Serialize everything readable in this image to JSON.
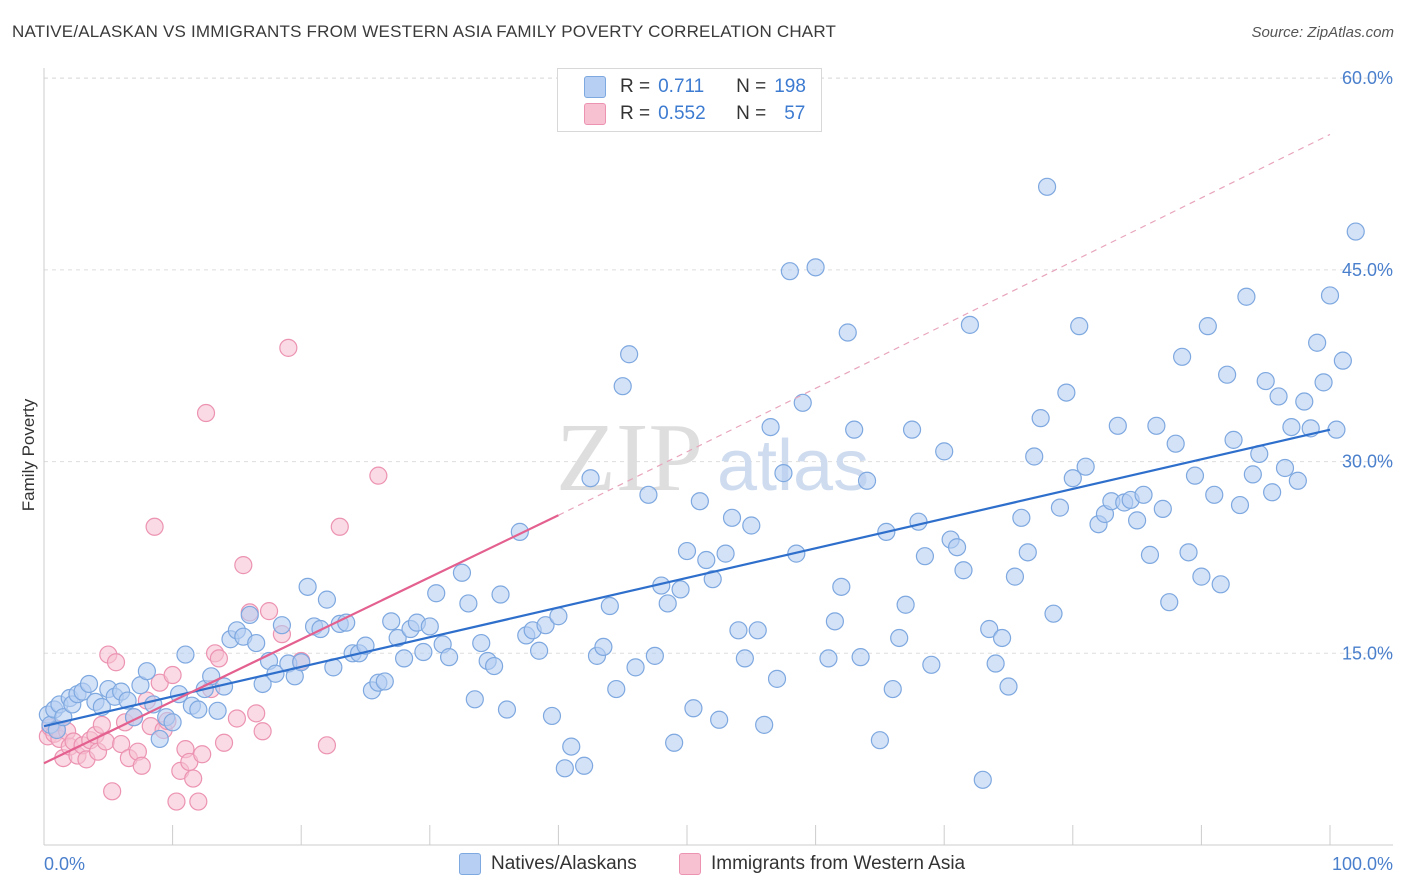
{
  "title": "NATIVE/ALASKAN VS IMMIGRANTS FROM WESTERN ASIA FAMILY POVERTY CORRELATION CHART",
  "source": "Source: ZipAtlas.com",
  "watermark": {
    "zip": "ZIP",
    "atlas": "atlas"
  },
  "legend_top": {
    "r_label": "R =",
    "n_label": "N =",
    "rows": [
      {
        "r": "0.711",
        "n": "198"
      },
      {
        "r": "0.552",
        "n": "57"
      }
    ]
  },
  "colors": {
    "blue_fill": "#b6cff2",
    "blue_stroke": "#7ea8e0",
    "blue_line": "#2f6fcc",
    "pink_fill": "#f7c1d2",
    "pink_stroke": "#ec93b2",
    "pink_line": "#e3608f",
    "grid": "#dddddd",
    "tick_label": "#4a7fcc"
  },
  "chart_data": {
    "type": "scatter",
    "title": "NATIVE/ALASKAN VS IMMIGRANTS FROM WESTERN ASIA FAMILY POVERTY CORRELATION CHART",
    "xlabel": "",
    "ylabel": "Family Poverty",
    "xlim": [
      0,
      100
    ],
    "ylim": [
      0,
      63
    ],
    "x_tick_labels": [
      "0.0%",
      "100.0%"
    ],
    "y_ticks": [
      15,
      30,
      45,
      60
    ],
    "y_tick_labels": [
      "15.0%",
      "30.0%",
      "45.0%",
      "60.0%"
    ],
    "grid": true,
    "legend_position": "bottom",
    "series": [
      {
        "name": "Natives/Alaskans",
        "color": "#b6cff2",
        "trend": {
          "x0": 0,
          "y0": 9.3,
          "x1": 100,
          "y1": 32.5
        },
        "points": [
          [
            0.3,
            10.2
          ],
          [
            0.5,
            9.4
          ],
          [
            0.8,
            10.6
          ],
          [
            1.0,
            9.0
          ],
          [
            1.2,
            11.0
          ],
          [
            1.5,
            10.0
          ],
          [
            2.0,
            11.5
          ],
          [
            2.2,
            11.0
          ],
          [
            2.6,
            11.8
          ],
          [
            3.0,
            12.0
          ],
          [
            3.5,
            12.6
          ],
          [
            4.0,
            11.2
          ],
          [
            4.5,
            10.8
          ],
          [
            5.0,
            12.2
          ],
          [
            5.5,
            11.6
          ],
          [
            6.0,
            12.0
          ],
          [
            6.5,
            11.3
          ],
          [
            7.0,
            10.0
          ],
          [
            7.5,
            12.5
          ],
          [
            8.0,
            13.6
          ],
          [
            8.5,
            11.0
          ],
          [
            9.0,
            8.3
          ],
          [
            9.5,
            10.0
          ],
          [
            10.0,
            9.6
          ],
          [
            10.5,
            11.8
          ],
          [
            11.0,
            14.9
          ],
          [
            11.5,
            10.9
          ],
          [
            12.0,
            10.6
          ],
          [
            12.5,
            12.2
          ],
          [
            13.0,
            13.2
          ],
          [
            13.5,
            10.5
          ],
          [
            14.0,
            12.4
          ],
          [
            14.5,
            16.1
          ],
          [
            15.0,
            16.8
          ],
          [
            15.5,
            16.3
          ],
          [
            16.0,
            18.0
          ],
          [
            16.5,
            15.8
          ],
          [
            17.0,
            12.6
          ],
          [
            17.5,
            14.4
          ],
          [
            18.0,
            13.4
          ],
          [
            18.5,
            17.2
          ],
          [
            19.0,
            14.2
          ],
          [
            19.5,
            13.2
          ],
          [
            20.0,
            14.3
          ],
          [
            20.5,
            20.2
          ],
          [
            21.0,
            17.1
          ],
          [
            21.5,
            16.9
          ],
          [
            22.0,
            19.2
          ],
          [
            22.5,
            13.9
          ],
          [
            23.0,
            17.3
          ],
          [
            23.5,
            17.4
          ],
          [
            24.0,
            15.0
          ],
          [
            24.5,
            15.0
          ],
          [
            25.0,
            15.6
          ],
          [
            25.5,
            12.1
          ],
          [
            26.0,
            12.7
          ],
          [
            26.5,
            12.8
          ],
          [
            27.0,
            17.5
          ],
          [
            27.5,
            16.2
          ],
          [
            28.0,
            14.6
          ],
          [
            28.5,
            16.9
          ],
          [
            29.0,
            17.4
          ],
          [
            29.5,
            15.1
          ],
          [
            30.0,
            17.1
          ],
          [
            30.5,
            19.7
          ],
          [
            31.0,
            15.7
          ],
          [
            31.5,
            14.7
          ],
          [
            32.5,
            21.3
          ],
          [
            33.0,
            18.9
          ],
          [
            33.5,
            11.4
          ],
          [
            34.0,
            15.8
          ],
          [
            34.5,
            14.4
          ],
          [
            35.0,
            14.0
          ],
          [
            35.5,
            19.6
          ],
          [
            36.0,
            10.6
          ],
          [
            37.0,
            24.5
          ],
          [
            37.5,
            16.4
          ],
          [
            38.0,
            16.8
          ],
          [
            38.5,
            15.2
          ],
          [
            39.0,
            17.2
          ],
          [
            39.5,
            10.1
          ],
          [
            40.0,
            17.9
          ],
          [
            40.5,
            6.0
          ],
          [
            41.0,
            7.7
          ],
          [
            42.0,
            6.2
          ],
          [
            42.5,
            28.7
          ],
          [
            43.0,
            14.8
          ],
          [
            43.5,
            15.5
          ],
          [
            44.0,
            18.7
          ],
          [
            44.5,
            12.2
          ],
          [
            45.0,
            35.9
          ],
          [
            45.5,
            38.4
          ],
          [
            46.0,
            13.9
          ],
          [
            47.0,
            27.4
          ],
          [
            47.5,
            14.8
          ],
          [
            48.0,
            20.3
          ],
          [
            48.5,
            18.9
          ],
          [
            49.0,
            8.0
          ],
          [
            49.5,
            20.0
          ],
          [
            50.0,
            23.0
          ],
          [
            50.5,
            10.7
          ],
          [
            51.0,
            26.9
          ],
          [
            51.5,
            22.3
          ],
          [
            52.0,
            20.8
          ],
          [
            52.5,
            9.8
          ],
          [
            53.0,
            22.8
          ],
          [
            53.5,
            25.6
          ],
          [
            54.0,
            16.8
          ],
          [
            54.5,
            14.6
          ],
          [
            55.0,
            25.0
          ],
          [
            55.5,
            16.8
          ],
          [
            56.0,
            9.4
          ],
          [
            56.5,
            32.7
          ],
          [
            57.0,
            13.0
          ],
          [
            57.5,
            29.1
          ],
          [
            58.0,
            44.9
          ],
          [
            58.5,
            22.8
          ],
          [
            59.0,
            34.6
          ],
          [
            60.0,
            45.2
          ],
          [
            61.0,
            14.6
          ],
          [
            61.5,
            17.5
          ],
          [
            62.0,
            20.2
          ],
          [
            62.5,
            40.1
          ],
          [
            63.0,
            32.5
          ],
          [
            63.5,
            14.7
          ],
          [
            64.0,
            28.5
          ],
          [
            65.0,
            8.2
          ],
          [
            65.5,
            24.5
          ],
          [
            66.0,
            12.2
          ],
          [
            66.5,
            16.2
          ],
          [
            67.0,
            18.8
          ],
          [
            67.5,
            32.5
          ],
          [
            68.0,
            25.3
          ],
          [
            68.5,
            22.6
          ],
          [
            69.0,
            14.1
          ],
          [
            70.0,
            30.8
          ],
          [
            70.5,
            23.9
          ],
          [
            71.0,
            23.3
          ],
          [
            71.5,
            21.5
          ],
          [
            72.0,
            40.7
          ],
          [
            73.0,
            5.1
          ],
          [
            73.5,
            16.9
          ],
          [
            74.0,
            14.2
          ],
          [
            74.5,
            16.2
          ],
          [
            75.0,
            12.4
          ],
          [
            75.5,
            21.0
          ],
          [
            76.0,
            25.6
          ],
          [
            76.5,
            22.9
          ],
          [
            77.0,
            30.4
          ],
          [
            77.5,
            33.4
          ],
          [
            78.0,
            51.5
          ],
          [
            78.5,
            18.1
          ],
          [
            79.0,
            26.4
          ],
          [
            79.5,
            35.4
          ],
          [
            80.0,
            28.7
          ],
          [
            80.5,
            40.6
          ],
          [
            81.0,
            29.6
          ],
          [
            82.0,
            25.1
          ],
          [
            82.5,
            25.9
          ],
          [
            83.0,
            26.9
          ],
          [
            83.5,
            32.8
          ],
          [
            84.0,
            26.8
          ],
          [
            84.5,
            27.0
          ],
          [
            85.0,
            25.4
          ],
          [
            85.5,
            27.4
          ],
          [
            86.0,
            22.7
          ],
          [
            86.5,
            32.8
          ],
          [
            87.0,
            26.3
          ],
          [
            87.5,
            19.0
          ],
          [
            88.0,
            31.4
          ],
          [
            88.5,
            38.2
          ],
          [
            89.0,
            22.9
          ],
          [
            89.5,
            28.9
          ],
          [
            90.0,
            21.0
          ],
          [
            90.5,
            40.6
          ],
          [
            91.0,
            27.4
          ],
          [
            91.5,
            20.4
          ],
          [
            92.0,
            36.8
          ],
          [
            92.5,
            31.7
          ],
          [
            93.0,
            26.6
          ],
          [
            93.5,
            42.9
          ],
          [
            94.0,
            29.0
          ],
          [
            94.5,
            30.6
          ],
          [
            95.0,
            36.3
          ],
          [
            95.5,
            27.6
          ],
          [
            96.0,
            35.1
          ],
          [
            96.5,
            29.5
          ],
          [
            97.0,
            32.7
          ],
          [
            97.5,
            28.5
          ],
          [
            98.0,
            34.7
          ],
          [
            98.5,
            32.6
          ],
          [
            99.0,
            39.3
          ],
          [
            99.5,
            36.2
          ],
          [
            100.0,
            43.0
          ],
          [
            100.5,
            32.5
          ],
          [
            101.0,
            37.9
          ],
          [
            102.0,
            48.0
          ]
        ]
      },
      {
        "name": "Immigrants from Western Asia",
        "color": "#f7c1d2",
        "trend": {
          "x0": 0,
          "y0": 6.4,
          "x1": 40,
          "y1": 25.8,
          "dashed_to": {
            "x": 100,
            "y": 55.6
          }
        },
        "points": [
          [
            0.3,
            8.5
          ],
          [
            0.5,
            9.2
          ],
          [
            0.8,
            8.7
          ],
          [
            1.0,
            9.1
          ],
          [
            1.2,
            8.3
          ],
          [
            1.5,
            6.8
          ],
          [
            1.8,
            8.9
          ],
          [
            2.0,
            7.7
          ],
          [
            2.3,
            8.1
          ],
          [
            2.6,
            7.0
          ],
          [
            3.0,
            7.8
          ],
          [
            3.3,
            6.7
          ],
          [
            3.6,
            8.2
          ],
          [
            4.0,
            8.6
          ],
          [
            4.2,
            7.3
          ],
          [
            4.5,
            9.4
          ],
          [
            4.8,
            8.1
          ],
          [
            5.0,
            14.9
          ],
          [
            5.3,
            4.2
          ],
          [
            5.6,
            14.3
          ],
          [
            6.0,
            7.9
          ],
          [
            6.3,
            9.6
          ],
          [
            6.6,
            6.8
          ],
          [
            7.0,
            10.0
          ],
          [
            7.3,
            7.3
          ],
          [
            7.6,
            6.2
          ],
          [
            8.0,
            11.3
          ],
          [
            8.3,
            9.3
          ],
          [
            8.6,
            24.9
          ],
          [
            9.0,
            12.7
          ],
          [
            9.3,
            9.0
          ],
          [
            9.6,
            9.7
          ],
          [
            10.0,
            13.3
          ],
          [
            10.3,
            3.4
          ],
          [
            10.6,
            5.8
          ],
          [
            11.0,
            7.5
          ],
          [
            11.3,
            6.5
          ],
          [
            11.6,
            5.2
          ],
          [
            12.0,
            3.4
          ],
          [
            12.3,
            7.1
          ],
          [
            12.6,
            33.8
          ],
          [
            13.0,
            12.2
          ],
          [
            13.3,
            15.0
          ],
          [
            13.6,
            14.6
          ],
          [
            14.0,
            8.0
          ],
          [
            15.0,
            9.9
          ],
          [
            15.5,
            21.9
          ],
          [
            16.0,
            18.2
          ],
          [
            16.5,
            10.3
          ],
          [
            17.0,
            8.9
          ],
          [
            17.5,
            18.3
          ],
          [
            18.5,
            16.5
          ],
          [
            19.0,
            38.9
          ],
          [
            20.0,
            14.4
          ],
          [
            22.0,
            7.8
          ],
          [
            23.0,
            24.9
          ],
          [
            26.0,
            28.9
          ]
        ]
      }
    ]
  },
  "legend_bottom": [
    "Natives/Alaskans",
    "Immigrants from Western Asia"
  ]
}
